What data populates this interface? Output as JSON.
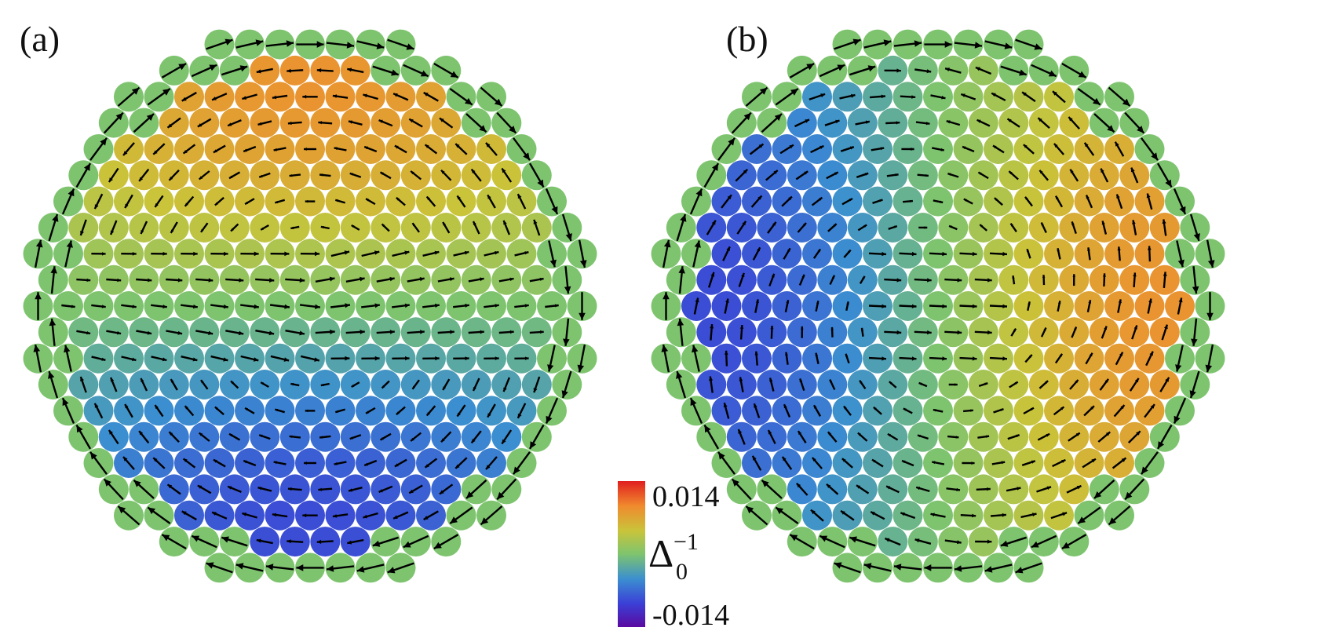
{
  "panels": [
    {
      "label": "(a)",
      "field": "vertical-dipole"
    },
    {
      "label": "(b)",
      "field": "horizontal-dipole"
    }
  ],
  "colorbar": {
    "max_label": "0.014",
    "min_label": "-0.014",
    "symbol": "Δ",
    "symbol_sub": "0",
    "symbol_sup": "−1",
    "range": [
      -0.014,
      0.014
    ],
    "colormap": [
      "#5b0aa0",
      "#3b3fd6",
      "#3b8fd0",
      "#7ec46f",
      "#c9c43a",
      "#f08a2e",
      "#e01f1f"
    ]
  },
  "arrow_color": "#000000"
}
